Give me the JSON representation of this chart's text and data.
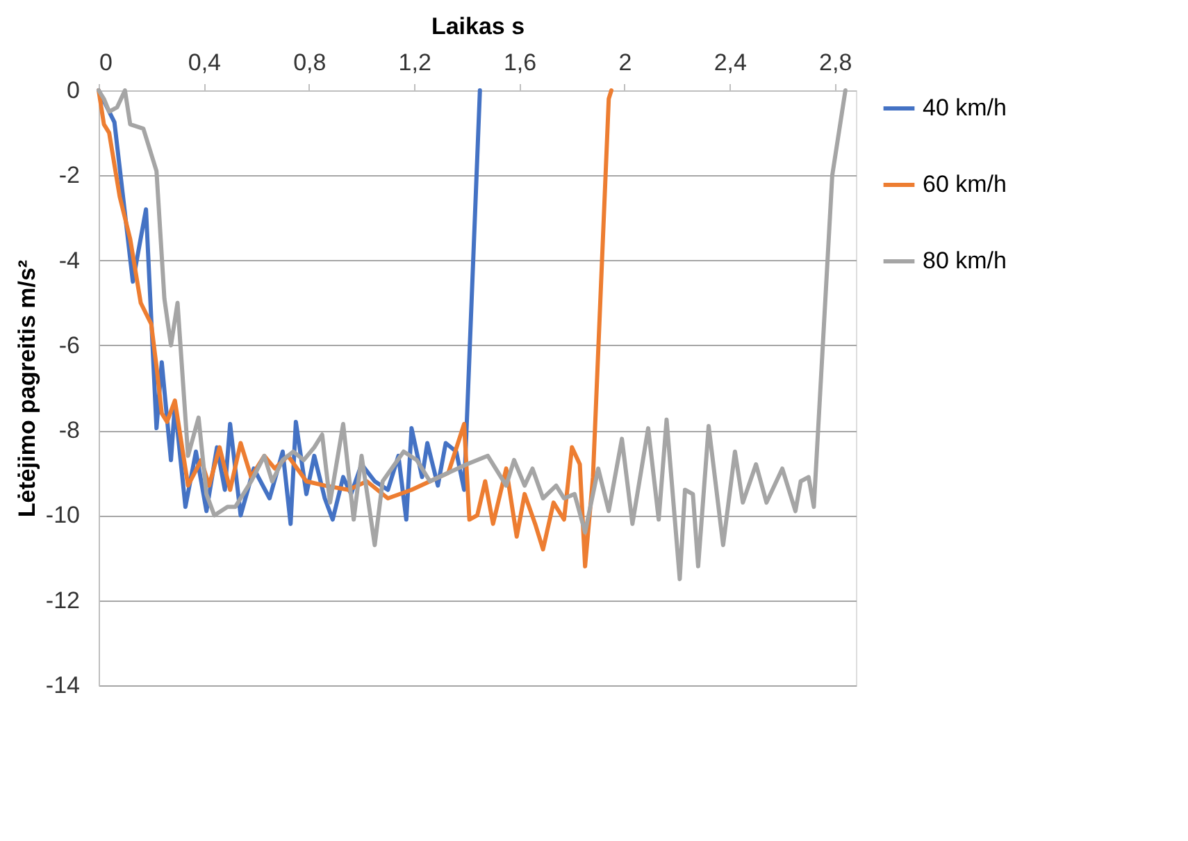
{
  "chart_data": {
    "type": "line",
    "xlabel": "Laikas s",
    "ylabel": "Lėtėjimo pagreitis m/s²",
    "xlim": [
      0,
      2.88
    ],
    "xticks": [
      {
        "value": 0,
        "label": "0"
      },
      {
        "value": 0.4,
        "label": "0,4"
      },
      {
        "value": 0.8,
        "label": "0,8"
      },
      {
        "value": 1.2,
        "label": "1,2"
      },
      {
        "value": 1.6,
        "label": "1,6"
      },
      {
        "value": 2,
        "label": "2"
      },
      {
        "value": 2.4,
        "label": "2,4"
      },
      {
        "value": 2.8,
        "label": "2,8"
      }
    ],
    "ylim": [
      -14,
      0
    ],
    "yticks": [
      -14,
      -12,
      -10,
      -8,
      -6,
      -4,
      -2,
      0
    ],
    "grid": "y",
    "legend": "right",
    "marker": "none",
    "line_style": "solid",
    "series": [
      {
        "name": "40 km/h",
        "color": "#4472c4",
        "x": [
          0,
          0.06,
          0.13,
          0.18,
          0.22,
          0.24,
          0.275,
          0.29,
          0.33,
          0.37,
          0.41,
          0.45,
          0.48,
          0.5,
          0.54,
          0.59,
          0.65,
          0.7,
          0.73,
          0.75,
          0.79,
          0.82,
          0.86,
          0.89,
          0.93,
          0.96,
          1.0,
          1.05,
          1.1,
          1.14,
          1.17,
          1.19,
          1.23,
          1.25,
          1.29,
          1.32,
          1.36,
          1.39,
          1.45
        ],
        "values": [
          0,
          -0.75,
          -4.5,
          -2.8,
          -7.95,
          -6.4,
          -8.7,
          -7.4,
          -9.8,
          -8.5,
          -9.9,
          -8.4,
          -9.4,
          -7.85,
          -10.0,
          -8.9,
          -9.6,
          -8.5,
          -10.2,
          -7.8,
          -9.5,
          -8.6,
          -9.6,
          -10.1,
          -9.1,
          -9.5,
          -8.8,
          -9.2,
          -9.4,
          -8.6,
          -10.1,
          -7.95,
          -9.1,
          -8.3,
          -9.3,
          -8.3,
          -8.5,
          -9.4,
          0
        ]
      },
      {
        "name": "60 km/h",
        "color": "#ed7d31",
        "x": [
          0,
          0.02,
          0.04,
          0.08,
          0.12,
          0.16,
          0.2,
          0.22,
          0.24,
          0.26,
          0.29,
          0.34,
          0.39,
          0.42,
          0.46,
          0.5,
          0.54,
          0.58,
          0.63,
          0.67,
          0.72,
          0.79,
          0.86,
          0.95,
          1.02,
          1.1,
          1.19,
          1.26,
          1.33,
          1.39,
          1.41,
          1.44,
          1.47,
          1.5,
          1.55,
          1.59,
          1.62,
          1.66,
          1.69,
          1.73,
          1.77,
          1.8,
          1.83,
          1.85,
          1.88,
          1.94,
          1.95
        ],
        "values": [
          0,
          -0.8,
          -1.0,
          -2.5,
          -3.5,
          -5.0,
          -5.5,
          -6.5,
          -7.6,
          -7.8,
          -7.3,
          -9.3,
          -8.7,
          -9.3,
          -8.4,
          -9.4,
          -8.3,
          -9.1,
          -8.6,
          -8.9,
          -8.6,
          -9.2,
          -9.3,
          -9.4,
          -9.2,
          -9.6,
          -9.4,
          -9.2,
          -9.0,
          -7.85,
          -10.1,
          -10.0,
          -9.2,
          -10.2,
          -8.9,
          -10.5,
          -9.5,
          -10.2,
          -10.8,
          -9.7,
          -10.1,
          -8.4,
          -8.8,
          -11.2,
          -9.1,
          -0.2,
          0
        ]
      },
      {
        "name": "80 km/h",
        "color": "#a5a5a5",
        "x": [
          0,
          0.02,
          0.04,
          0.07,
          0.1,
          0.12,
          0.17,
          0.22,
          0.25,
          0.275,
          0.3,
          0.34,
          0.38,
          0.41,
          0.44,
          0.49,
          0.52,
          0.58,
          0.63,
          0.66,
          0.7,
          0.74,
          0.78,
          0.82,
          0.85,
          0.88,
          0.93,
          0.97,
          1.0,
          1.05,
          1.08,
          1.16,
          1.21,
          1.26,
          1.33,
          1.4,
          1.48,
          1.55,
          1.58,
          1.62,
          1.65,
          1.69,
          1.74,
          1.77,
          1.81,
          1.85,
          1.9,
          1.94,
          1.99,
          2.03,
          2.09,
          2.13,
          2.16,
          2.21,
          2.23,
          2.26,
          2.28,
          2.32,
          2.375,
          2.42,
          2.45,
          2.5,
          2.54,
          2.6,
          2.65,
          2.67,
          2.7,
          2.72,
          2.79,
          2.84
        ],
        "values": [
          0,
          -0.2,
          -0.5,
          -0.4,
          0,
          -0.8,
          -0.9,
          -1.9,
          -4.9,
          -6.0,
          -5.0,
          -8.6,
          -7.7,
          -9.5,
          -10.0,
          -9.8,
          -9.8,
          -9.2,
          -8.6,
          -9.2,
          -8.7,
          -8.5,
          -8.7,
          -8.4,
          -8.1,
          -9.7,
          -7.85,
          -10.1,
          -8.6,
          -10.7,
          -9.2,
          -8.5,
          -8.7,
          -9.2,
          -9.0,
          -8.8,
          -8.6,
          -9.3,
          -8.7,
          -9.3,
          -8.9,
          -9.6,
          -9.3,
          -9.6,
          -9.5,
          -10.4,
          -8.9,
          -9.9,
          -8.2,
          -10.2,
          -7.95,
          -10.1,
          -7.75,
          -11.5,
          -9.4,
          -9.5,
          -11.2,
          -7.9,
          -10.7,
          -8.5,
          -9.7,
          -8.8,
          -9.7,
          -8.9,
          -9.9,
          -9.2,
          -9.1,
          -9.8,
          -2.0,
          0
        ]
      }
    ]
  }
}
